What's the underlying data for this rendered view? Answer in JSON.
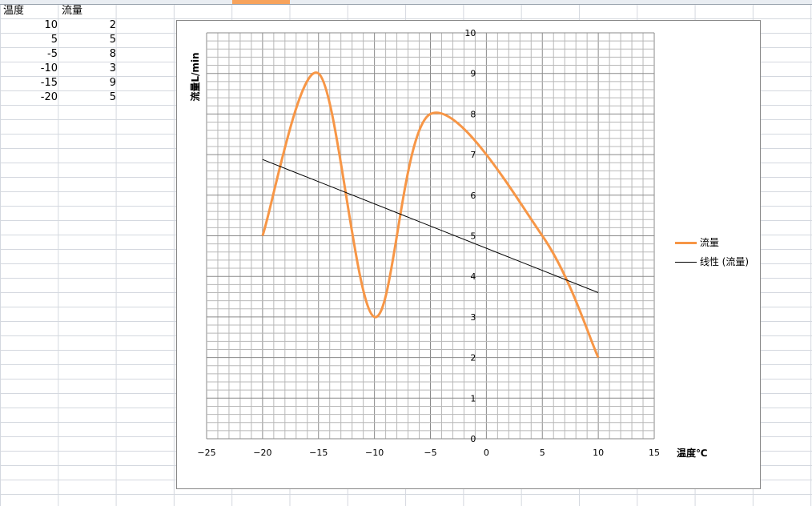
{
  "sheet": {
    "headers": [
      "温度",
      "流量"
    ],
    "rows": [
      [
        "10",
        "2"
      ],
      [
        "5",
        "5"
      ],
      [
        "-5",
        "8"
      ],
      [
        "-10",
        "3"
      ],
      [
        "-15",
        "9"
      ],
      [
        "-20",
        "5"
      ]
    ],
    "selected_column_color": "#f7a35c"
  },
  "chart_data": {
    "type": "scatter",
    "subtype": "smooth-line",
    "xlabel": "温度℃",
    "ylabel": "流量L/min",
    "xlim": [
      -25,
      15
    ],
    "ylim": [
      0,
      10
    ],
    "xticks": [
      "−25",
      "−20",
      "−15",
      "−10",
      "−5",
      "0",
      "5",
      "10",
      "15"
    ],
    "yticks": [
      "0",
      "1",
      "2",
      "3",
      "4",
      "5",
      "6",
      "7",
      "8",
      "9",
      "10"
    ],
    "grid": "major and minor",
    "legend_position": "right",
    "series": [
      {
        "name": "流量",
        "color": "#f79646",
        "x": [
          10,
          5,
          -5,
          -10,
          -15,
          -20
        ],
        "y": [
          2,
          5,
          8,
          3,
          9,
          5
        ]
      },
      {
        "name": "线性 (流量)",
        "color": "#000000",
        "trendline": "linear",
        "x": [
          -20,
          10
        ],
        "y": [
          6.88,
          3.6
        ]
      }
    ]
  }
}
